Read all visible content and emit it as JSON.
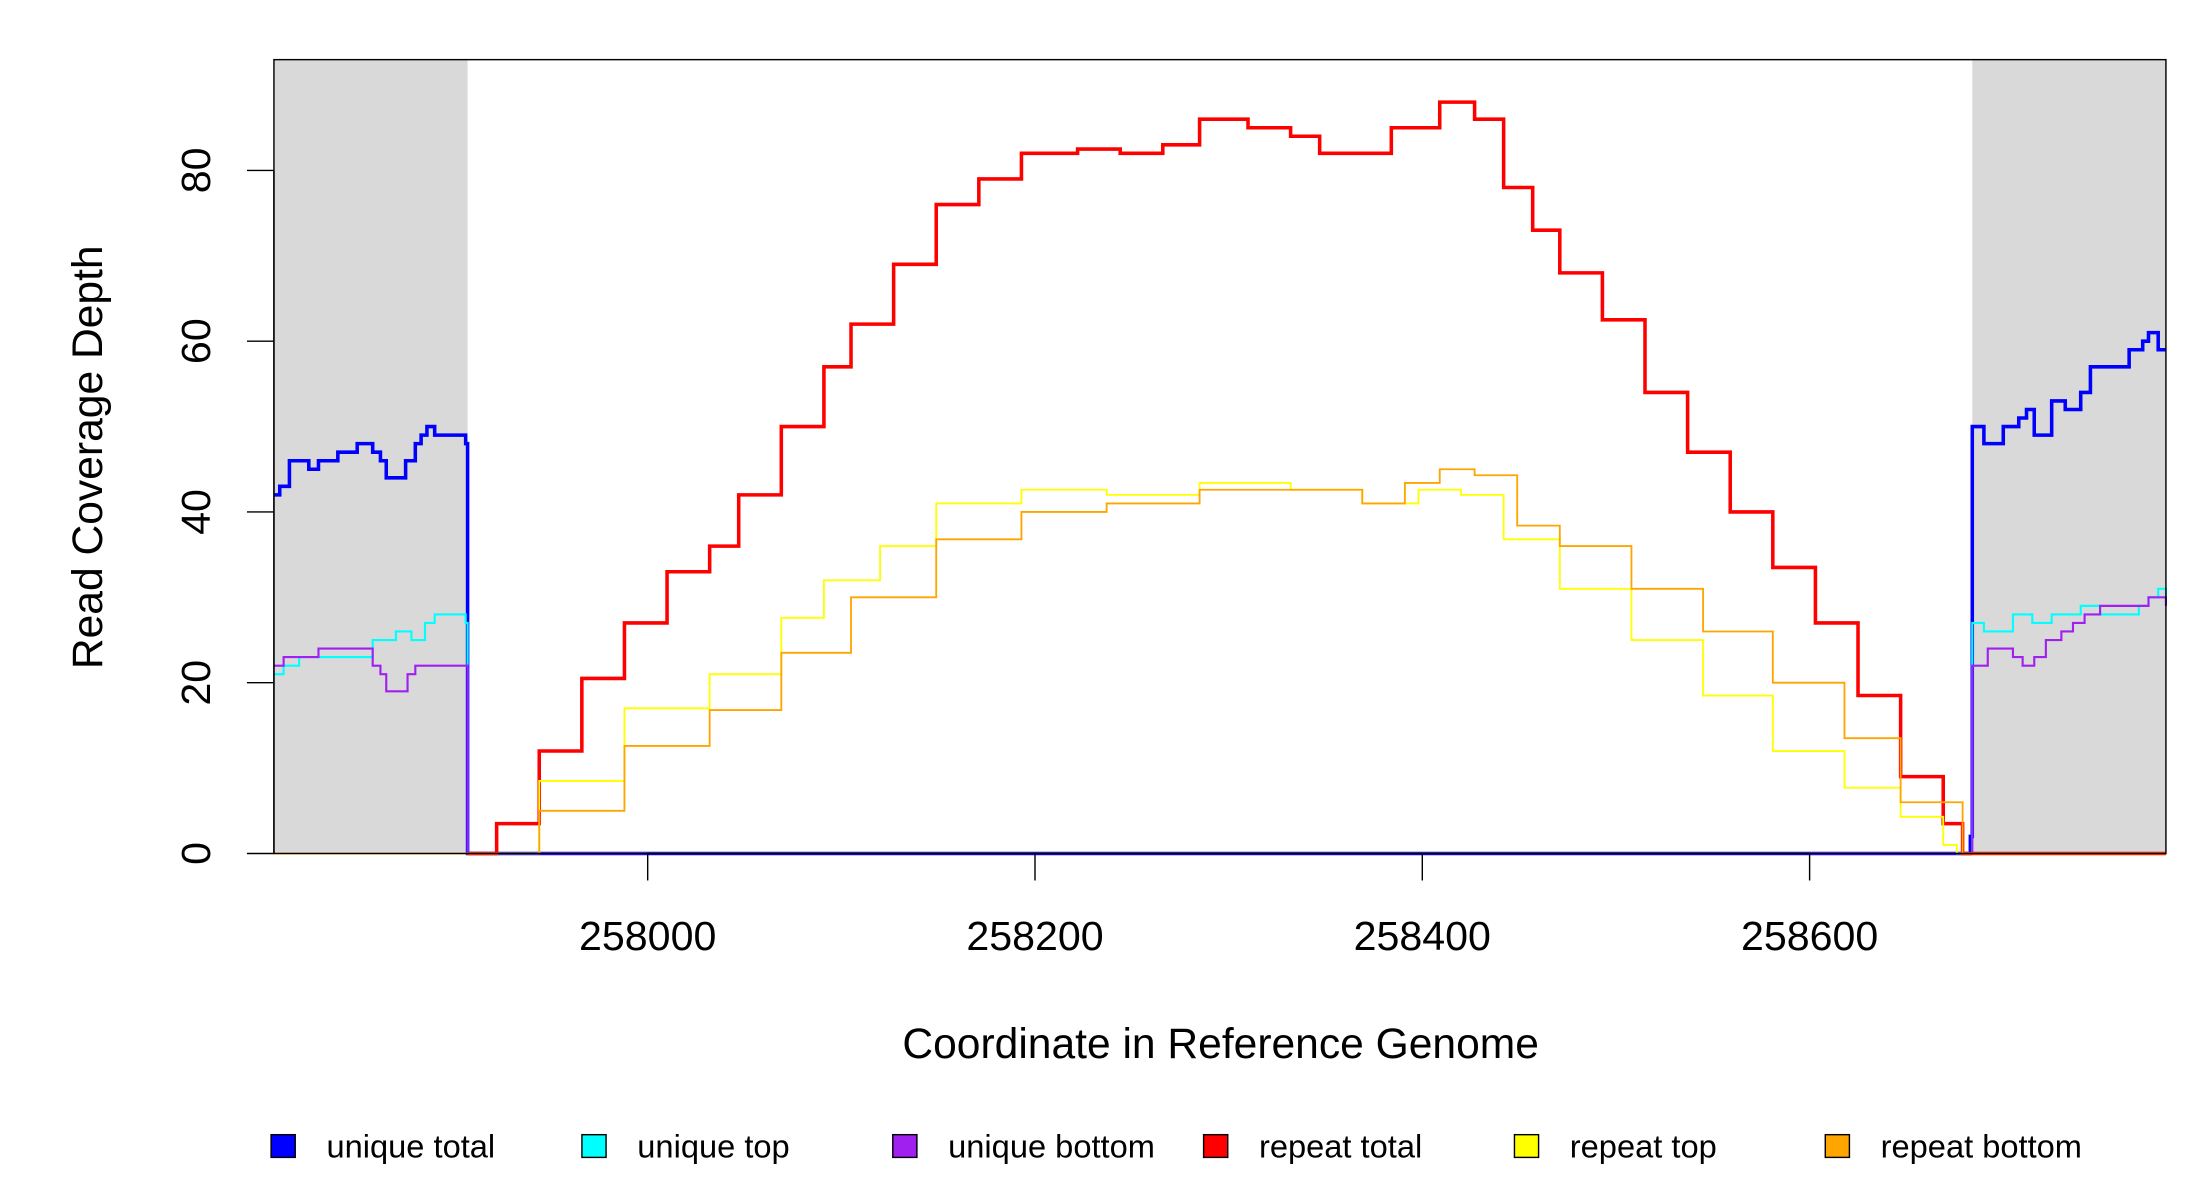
{
  "chart_data": {
    "type": "line",
    "title": "",
    "xlabel": "Coordinate in Reference Genome",
    "ylabel": "Read Coverage Depth",
    "xlim": [
      257807,
      258784
    ],
    "ylim": [
      0,
      93
    ],
    "xticks": [
      258000,
      258200,
      258400,
      258600
    ],
    "xtick_labels": [
      "258000",
      "258200",
      "258400",
      "258600"
    ],
    "yticks": [
      0,
      20,
      40,
      60,
      80
    ],
    "ytick_labels": [
      "0",
      "20",
      "40",
      "60",
      "80"
    ],
    "grid": false,
    "legend_position": "bottom",
    "shaded_regions": [
      [
        257807,
        257907
      ],
      [
        258684,
        258784
      ]
    ],
    "shade_color": "#d9d9d9",
    "series": [
      {
        "name": "unique total",
        "color": "#0000ff",
        "width": 2.5,
        "x": [
          257807,
          257810,
          257815,
          257825,
          257830,
          257840,
          257850,
          257858,
          257862,
          257865,
          257870,
          257875,
          257880,
          257883,
          257886,
          257890,
          257906,
          257907,
          258681,
          258683,
          258684,
          258690,
          258700,
          258708,
          258712,
          258716,
          258725,
          258732,
          258740,
          258745,
          258760,
          258765,
          258772,
          258775,
          258780,
          258784
        ],
        "y": [
          42,
          43,
          46,
          45,
          46,
          47,
          48,
          47,
          46,
          44,
          44,
          46,
          48,
          49,
          50,
          49,
          48,
          0,
          0,
          2,
          50,
          48,
          50,
          51,
          52,
          49,
          53,
          52,
          54,
          57,
          57,
          59,
          60,
          61,
          59,
          59
        ]
      },
      {
        "name": "unique top",
        "color": "#00ffff",
        "width": 1.5,
        "x": [
          257807,
          257812,
          257820,
          257840,
          257858,
          257870,
          257878,
          257885,
          257890,
          257906,
          257907,
          258683,
          258684,
          258690,
          258700,
          258705,
          258715,
          258725,
          258735,
          258740,
          258750,
          258760,
          258770,
          258775,
          258780,
          258784
        ],
        "y": [
          21,
          22,
          23,
          23,
          25,
          26,
          25,
          27,
          28,
          27,
          0,
          0,
          27,
          26,
          26,
          28,
          27,
          28,
          28,
          29,
          28,
          28,
          29,
          30,
          31,
          29
        ]
      },
      {
        "name": "unique bottom",
        "color": "#a020f0",
        "width": 1.5,
        "x": [
          257807,
          257812,
          257820,
          257830,
          257855,
          257858,
          257862,
          257865,
          257872,
          257876,
          257880,
          257906,
          257907,
          258683,
          258684,
          258692,
          258700,
          258705,
          258710,
          258716,
          258722,
          258730,
          258736,
          258742,
          258750,
          258760,
          258770,
          258775,
          258780,
          258784
        ],
        "y": [
          22,
          23,
          23,
          24,
          24,
          22,
          21,
          19,
          19,
          21,
          22,
          22,
          0,
          0,
          22,
          24,
          24,
          23,
          22,
          23,
          25,
          26,
          27,
          28,
          29,
          29,
          29,
          30,
          30,
          29
        ]
      },
      {
        "name": "repeat total",
        "color": "#ff0000",
        "width": 2.5,
        "x": [
          257907,
          257911,
          257922,
          257944,
          257966,
          257988,
          258010,
          258032,
          258047,
          258069,
          258091,
          258105,
          258127,
          258149,
          258171,
          258193,
          258222,
          258244,
          258266,
          258285,
          258310,
          258332,
          258347,
          258369,
          258384,
          258409,
          258427,
          258442,
          258457,
          258471,
          258493,
          258515,
          258537,
          258559,
          258581,
          258603,
          258625,
          258647,
          258669,
          258679,
          258784
        ],
        "y": [
          0,
          0,
          3.5,
          12,
          20.5,
          27,
          33,
          36,
          42,
          50,
          57,
          62,
          69,
          76,
          79,
          82,
          82.5,
          82,
          83,
          86,
          85,
          84,
          82,
          82,
          85,
          88,
          86,
          78,
          73,
          68,
          62.5,
          54,
          47,
          40,
          33.5,
          27,
          18.5,
          9,
          3.5,
          0,
          0
        ]
      },
      {
        "name": "repeat top",
        "color": "#ffff00",
        "width": 1.3,
        "x": [
          257907,
          257911,
          257944,
          257988,
          258032,
          258069,
          258091,
          258120,
          258149,
          258193,
          258237,
          258285,
          258332,
          258369,
          258398,
          258420,
          258442,
          258471,
          258508,
          258545,
          258581,
          258618,
          258647,
          258669,
          258676,
          258784
        ],
        "y": [
          0,
          0,
          8.5,
          17,
          21,
          27.6,
          32,
          36,
          41,
          42.6,
          42,
          43.4,
          42.6,
          41,
          42.6,
          42,
          36.8,
          31,
          25,
          18.5,
          12,
          7.7,
          4.3,
          1,
          0,
          0
        ]
      },
      {
        "name": "repeat bottom",
        "color": "#ffa500",
        "width": 1.3,
        "x": [
          257807,
          257911,
          257944,
          257988,
          258032,
          258069,
          258105,
          258149,
          258193,
          258237,
          258285,
          258332,
          258369,
          258391,
          258409,
          258427,
          258449,
          258471,
          258508,
          258545,
          258581,
          258618,
          258647,
          258679,
          258784
        ],
        "y": [
          0,
          0,
          5,
          12.6,
          16.8,
          23.5,
          30,
          36.8,
          40,
          41,
          42.6,
          42.6,
          41,
          43.4,
          45,
          44.3,
          38.4,
          36,
          31,
          26,
          20,
          13.5,
          6,
          0,
          0
        ]
      }
    ]
  }
}
